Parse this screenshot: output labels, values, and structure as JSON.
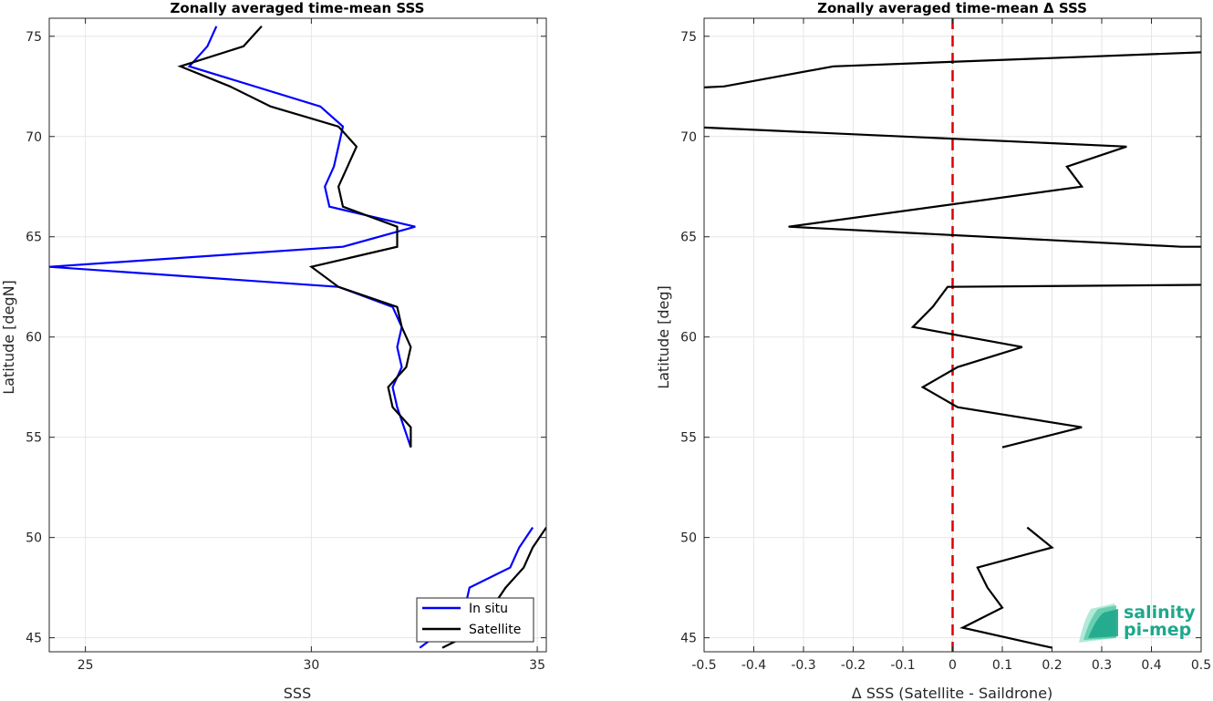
{
  "chart_data": [
    {
      "type": "line",
      "title": "Zonally averaged time-mean SSS",
      "xlabel": "SSS",
      "ylabel": "Latitude [degN]",
      "xlim": [
        24.2,
        35.2
      ],
      "ylim": [
        44.3,
        75.9
      ],
      "xticks": [
        "25",
        "30",
        "35"
      ],
      "yticks": [
        "45",
        "50",
        "55",
        "60",
        "65",
        "70",
        "75"
      ],
      "grid": true,
      "legend": "bottom-right",
      "series": [
        {
          "name": "In situ",
          "color": "#0000ff",
          "segments": [
            [
              [
                32.4,
                44.5
              ],
              [
                33.0,
                45.5
              ],
              [
                33.4,
                46.5
              ],
              [
                33.5,
                47.5
              ],
              [
                34.4,
                48.5
              ],
              [
                34.6,
                49.5
              ],
              [
                34.9,
                50.5
              ]
            ],
            [
              [
                32.2,
                54.5
              ],
              [
                31.9,
                56.5
              ],
              [
                31.8,
                57.5
              ],
              [
                32.0,
                58.5
              ],
              [
                31.9,
                59.5
              ],
              [
                32.0,
                60.5
              ],
              [
                31.8,
                61.5
              ],
              [
                30.6,
                62.5
              ],
              [
                24.2,
                63.5
              ],
              [
                30.7,
                64.5
              ],
              [
                32.3,
                65.5
              ],
              [
                30.4,
                66.5
              ],
              [
                30.3,
                67.5
              ],
              [
                30.5,
                68.5
              ],
              [
                30.6,
                69.5
              ],
              [
                30.7,
                70.5
              ],
              [
                30.2,
                71.5
              ],
              [
                27.3,
                73.5
              ],
              [
                27.7,
                74.5
              ],
              [
                27.9,
                75.5
              ]
            ]
          ]
        },
        {
          "name": "Satellite",
          "color": "#000000",
          "segments": [
            [
              [
                32.9,
                44.5
              ],
              [
                33.8,
                45.5
              ],
              [
                34.0,
                46.5
              ],
              [
                34.3,
                47.5
              ],
              [
                34.7,
                48.5
              ],
              [
                34.9,
                49.5
              ],
              [
                35.2,
                50.5
              ]
            ],
            [
              [
                32.2,
                54.5
              ],
              [
                32.2,
                55.5
              ],
              [
                31.8,
                56.5
              ],
              [
                31.7,
                57.5
              ],
              [
                32.1,
                58.5
              ],
              [
                32.2,
                59.5
              ],
              [
                32.0,
                60.5
              ],
              [
                31.9,
                61.5
              ],
              [
                30.6,
                62.5
              ],
              [
                30.0,
                63.5
              ],
              [
                31.9,
                64.5
              ],
              [
                31.9,
                65.5
              ],
              [
                30.7,
                66.5
              ],
              [
                30.6,
                67.5
              ],
              [
                30.8,
                68.5
              ],
              [
                31.0,
                69.5
              ],
              [
                30.6,
                70.5
              ],
              [
                29.1,
                71.5
              ],
              [
                28.2,
                72.5
              ],
              [
                27.1,
                73.5
              ],
              [
                28.5,
                74.5
              ],
              [
                28.9,
                75.5
              ]
            ]
          ]
        }
      ]
    },
    {
      "type": "line",
      "title": "Zonally averaged time-mean Δ SSS",
      "xlabel": "Δ SSS (Satellite - Saildrone)",
      "ylabel": "Latitude [deg]",
      "xlim": [
        -0.5,
        0.5
      ],
      "ylim": [
        44.3,
        75.9
      ],
      "xticks": [
        "-0.5",
        "-0.4",
        "-0.3",
        "-0.2",
        "-0.1",
        "0",
        "0.1",
        "0.2",
        "0.3",
        "0.4",
        "0.5"
      ],
      "yticks": [
        "45",
        "50",
        "55",
        "60",
        "65",
        "70",
        "75"
      ],
      "grid": true,
      "reference_line": {
        "x": 0,
        "color": "#dd0000",
        "style": "dashed"
      },
      "series": [
        {
          "color": "#000000",
          "segments": [
            [
              [
                0.2,
                44.5
              ],
              [
                0.02,
                45.5
              ],
              [
                0.1,
                46.5
              ],
              [
                0.07,
                47.5
              ],
              [
                0.05,
                48.5
              ],
              [
                0.2,
                49.5
              ],
              [
                0.15,
                50.5
              ]
            ],
            [
              [
                0.1,
                54.5
              ],
              [
                0.26,
                55.5
              ],
              [
                0.01,
                56.5
              ],
              [
                -0.06,
                57.5
              ],
              [
                0.01,
                58.5
              ],
              [
                0.14,
                59.5
              ],
              [
                -0.08,
                60.5
              ],
              [
                -0.04,
                61.5
              ],
              [
                -0.01,
                62.5
              ],
              [
                0.5,
                62.6
              ]
            ],
            [
              [
                0.5,
                64.5
              ],
              [
                0.46,
                64.5
              ],
              [
                -0.33,
                65.5
              ],
              [
                0.26,
                67.5
              ],
              [
                0.23,
                68.5
              ],
              [
                0.35,
                69.5
              ],
              [
                -0.5,
                70.45
              ]
            ],
            [
              [
                -0.5,
                72.45
              ],
              [
                -0.46,
                72.5
              ],
              [
                -0.24,
                73.5
              ],
              [
                0.5,
                74.2
              ]
            ]
          ]
        }
      ]
    }
  ],
  "legend": {
    "items": [
      "In situ",
      "Satellite"
    ]
  },
  "logo": {
    "line1": "salinity",
    "line2": "pi-mep",
    "color": "#1ea88c"
  }
}
